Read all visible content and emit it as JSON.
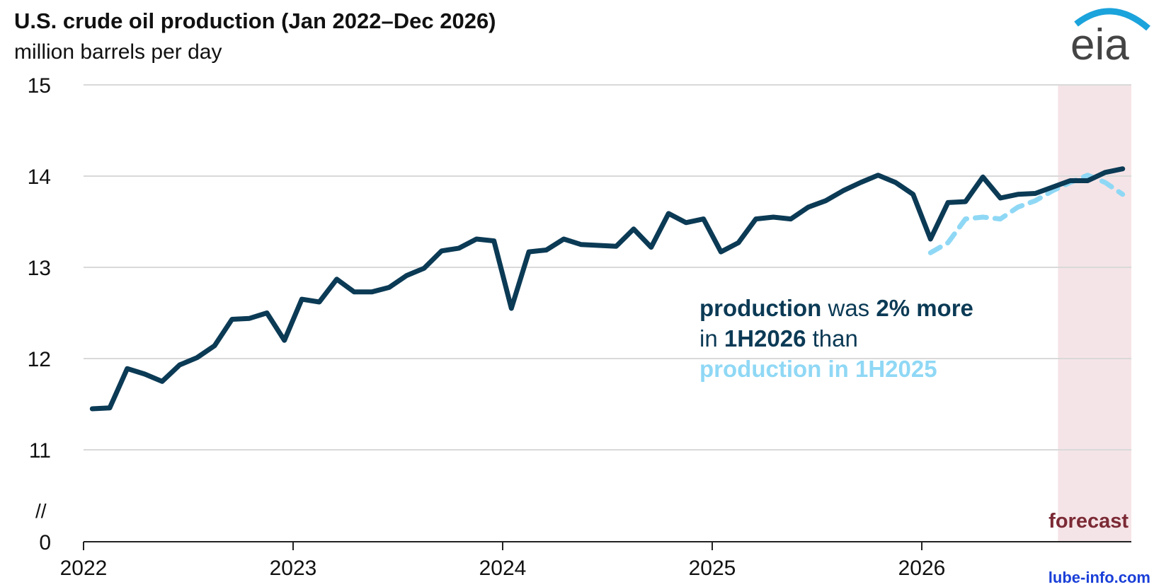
{
  "chart_data": {
    "type": "line",
    "title": "U.S. crude oil production (Jan 2022–Dec 2026)",
    "subtitle": "million barrels per day",
    "xlim": [
      2022,
      2027
    ],
    "xticks": [
      2022,
      2023,
      2024,
      2025,
      2026
    ],
    "ylim": [
      0,
      15
    ],
    "yticks": [
      0,
      11,
      12,
      13,
      14,
      15
    ],
    "axis_break": [
      0,
      11
    ],
    "grid": true,
    "series": [
      {
        "color": "#0b3a55",
        "dash": false,
        "start": 2022,
        "values": [
          11.45,
          11.46,
          11.89,
          11.83,
          11.75,
          11.93,
          12.01,
          12.14,
          12.43,
          12.44,
          12.5,
          12.2,
          12.65,
          12.62,
          12.87,
          12.73,
          12.73,
          12.78,
          12.91,
          12.99,
          13.18,
          13.21,
          13.31,
          13.29,
          12.55,
          13.17,
          13.19,
          13.31,
          13.25,
          13.24,
          13.23,
          13.42,
          13.22,
          13.59,
          13.49,
          13.53,
          13.17,
          13.27,
          13.53,
          13.55,
          13.53,
          13.66,
          13.73,
          13.84,
          13.93,
          14.01,
          13.93,
          13.8,
          13.31,
          13.71,
          13.72,
          13.99,
          13.76,
          13.8,
          13.81,
          13.88,
          13.95,
          13.95,
          14.04,
          14.08
        ]
      },
      {
        "color": "#8fd8f5",
        "dash": true,
        "start": 2026,
        "values": [
          13.16,
          13.27,
          13.53,
          13.55,
          13.53,
          13.66,
          13.73,
          13.84,
          13.93,
          14.01,
          13.93,
          13.8
        ]
      }
    ],
    "forecast": {
      "label": "forecast",
      "xspan": [
        2026.65,
        2027
      ],
      "color": "#f5e4e7",
      "label_color": "#7b2a35"
    },
    "annotation": [
      "production",
      " was ",
      "2% more",
      "in ",
      "1H2026",
      " than",
      "production in 1H2025"
    ],
    "logo": "eia",
    "watermark": "lube-info.com"
  }
}
